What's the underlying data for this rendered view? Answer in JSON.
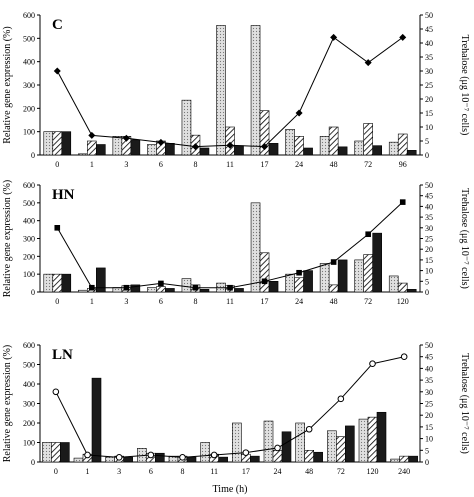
{
  "chart_data": [
    {
      "type": "bar",
      "panel_label": "C",
      "categories": [
        "0",
        "1",
        "3",
        "6",
        "8",
        "11",
        "17",
        "24",
        "48",
        "72",
        "96"
      ],
      "ylabel": "Relative gene expression (%)",
      "ylabel_right": "Trehalose (μg 10⁻⁷ cells)",
      "ylim": [
        0,
        600
      ],
      "ylim_right": [
        0,
        50
      ],
      "yticks": [
        "0",
        "100",
        "200",
        "300",
        "400",
        "500",
        "600"
      ],
      "yticks_right": [
        "0",
        "5",
        "10",
        "15",
        "20",
        "25",
        "30",
        "35",
        "40",
        "45",
        "50"
      ],
      "series": [
        {
          "style": "dotted",
          "values": [
            100,
            5,
            80,
            45,
            235,
            555,
            555,
            110,
            80,
            60,
            55
          ]
        },
        {
          "style": "hatched",
          "values": [
            100,
            60,
            80,
            60,
            85,
            120,
            190,
            80,
            120,
            135,
            90
          ]
        },
        {
          "style": "black",
          "values": [
            100,
            45,
            65,
            50,
            30,
            40,
            50,
            30,
            35,
            40,
            20
          ]
        }
      ],
      "line": {
        "marker": "diamond",
        "values": [
          30,
          7,
          6,
          4.5,
          3,
          3.5,
          3,
          15,
          42,
          33,
          42
        ]
      }
    },
    {
      "type": "bar",
      "panel_label": "HN",
      "categories": [
        "0",
        "1",
        "3",
        "6",
        "8",
        "11",
        "17",
        "24",
        "48",
        "72",
        "120"
      ],
      "ylabel": "Relative gene expression (%)",
      "ylabel_right": "Trehalose (μg 10⁻⁷ cells)",
      "ylim": [
        0,
        600
      ],
      "ylim_right": [
        0,
        50
      ],
      "yticks": [
        "0",
        "100",
        "200",
        "300",
        "400",
        "500",
        "600"
      ],
      "yticks_right": [
        "0",
        "5",
        "10",
        "15",
        "20",
        "25",
        "30",
        "35",
        "40",
        "45",
        "50"
      ],
      "series": [
        {
          "style": "dotted",
          "values": [
            100,
            10,
            25,
            25,
            75,
            50,
            500,
            100,
            160,
            180,
            90
          ]
        },
        {
          "style": "hatched",
          "values": [
            100,
            20,
            35,
            30,
            40,
            35,
            220,
            80,
            40,
            210,
            50
          ]
        },
        {
          "style": "black",
          "values": [
            100,
            135,
            40,
            20,
            15,
            20,
            60,
            120,
            180,
            330,
            15
          ]
        }
      ],
      "line": {
        "marker": "square",
        "values": [
          30,
          2,
          2,
          4,
          2,
          2,
          5,
          9,
          14,
          27,
          42
        ]
      }
    },
    {
      "type": "bar",
      "panel_label": "LN",
      "categories": [
        "0",
        "1",
        "3",
        "6",
        "8",
        "11",
        "17",
        "24",
        "48",
        "72",
        "120",
        "240"
      ],
      "xlabel": "Time (h)",
      "ylabel": "Relative gene expression (%)",
      "ylabel_right": "Trehalose (μg 10⁻⁷ cells)",
      "ylim": [
        0,
        600
      ],
      "ylim_right": [
        0,
        50
      ],
      "yticks": [
        "0",
        "100",
        "200",
        "300",
        "400",
        "500",
        "600"
      ],
      "yticks_right": [
        "0",
        "5",
        "10",
        "15",
        "20",
        "25",
        "30",
        "35",
        "40",
        "45",
        "50"
      ],
      "series": [
        {
          "style": "dotted",
          "values": [
            100,
            20,
            25,
            70,
            30,
            100,
            200,
            210,
            200,
            160,
            220,
            15
          ]
        },
        {
          "style": "hatched",
          "values": [
            100,
            40,
            30,
            45,
            30,
            40,
            40,
            60,
            60,
            130,
            230,
            30
          ]
        },
        {
          "style": "black",
          "values": [
            100,
            430,
            25,
            45,
            25,
            25,
            30,
            155,
            50,
            185,
            255,
            30
          ]
        }
      ],
      "line": {
        "marker": "circle",
        "values": [
          30,
          3,
          2,
          3,
          2,
          3,
          4,
          6,
          14,
          27,
          42,
          45
        ]
      }
    }
  ]
}
